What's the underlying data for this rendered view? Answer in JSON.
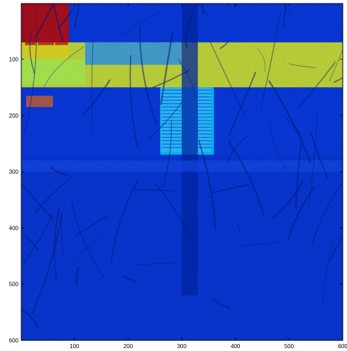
{
  "chart_data": {
    "type": "heatmap",
    "title": "",
    "xlabel": "",
    "ylabel": "",
    "xlim": [
      1,
      600
    ],
    "ylim": [
      600,
      1
    ],
    "y_axis_reversed": true,
    "x_ticks": [
      100,
      200,
      300,
      400,
      500,
      600
    ],
    "y_ticks": [
      100,
      200,
      300,
      400,
      500,
      600
    ],
    "colormap": "jet",
    "colorbar": false,
    "grid": false,
    "colors": {
      "background": "#0a2fd6",
      "low": "#00008f",
      "mid": "#00ffff",
      "high": "#ffff00",
      "max": "#b00000"
    },
    "regions": [
      {
        "label": "building-upper-left-hot",
        "x_range": [
          1,
          90
        ],
        "y_range": [
          1,
          85
        ],
        "level": "max"
      },
      {
        "label": "bright-band",
        "x_range": [
          1,
          600
        ],
        "y_range": [
          70,
          150
        ],
        "level": "high"
      },
      {
        "label": "window-panel",
        "x_range": [
          260,
          360
        ],
        "y_range": [
          150,
          270
        ],
        "level": "mid"
      },
      {
        "label": "lower-scene",
        "x_range": [
          1,
          600
        ],
        "y_range": [
          270,
          600
        ],
        "level": "low"
      }
    ]
  }
}
